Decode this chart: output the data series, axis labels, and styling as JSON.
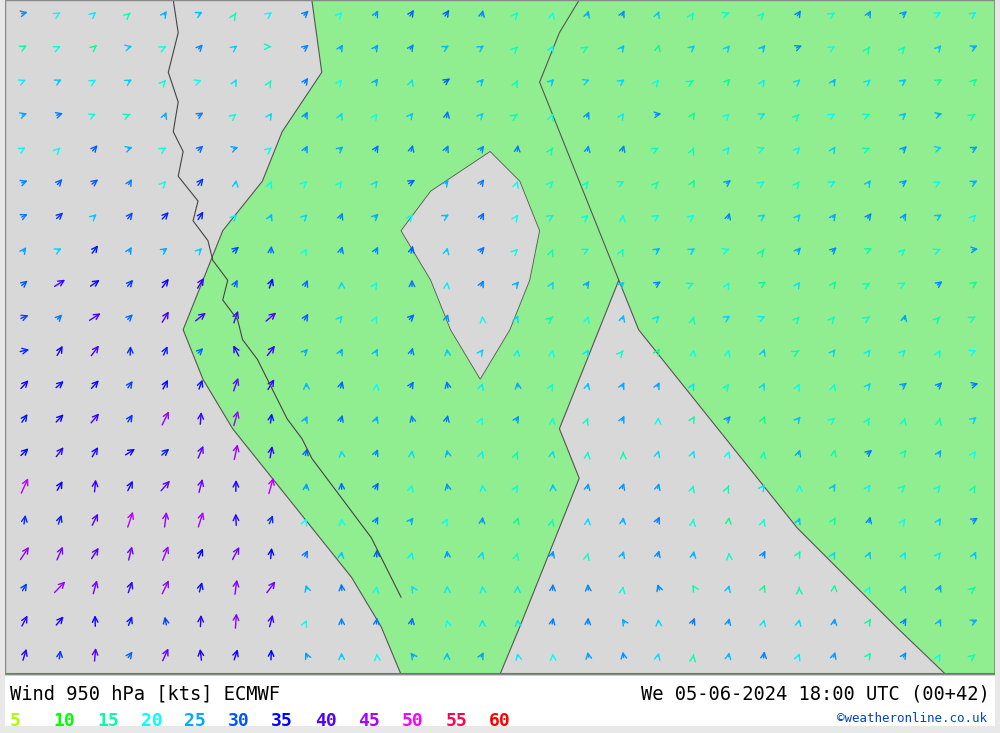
{
  "title_left": "Wind 950 hPa [kts] ECMWF",
  "title_right": "We 05-06-2024 18:00 UTC (00+42)",
  "credit": "©weatheronline.co.uk",
  "legend_values": [
    5,
    10,
    15,
    20,
    25,
    30,
    35,
    40,
    45,
    50,
    55,
    60
  ],
  "legend_colors": [
    "#aaff00",
    "#00ff00",
    "#00ffaa",
    "#00ffff",
    "#00aaff",
    "#0055ff",
    "#0000ff",
    "#5500ff",
    "#aa00ff",
    "#ff00ff",
    "#ff0055",
    "#ff0000"
  ],
  "bg_color": "#e8e8e8",
  "map_bg": "#d8d8d8",
  "bottom_bar_color": "#000000",
  "bottom_bar_bg": "#ffffff",
  "figsize": [
    10.0,
    7.33
  ],
  "dpi": 100
}
